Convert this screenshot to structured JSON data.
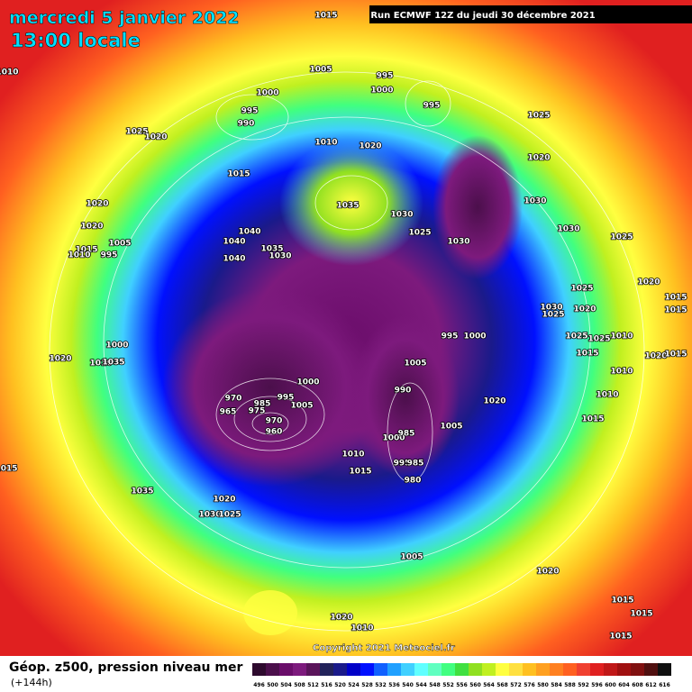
{
  "header": {
    "date": "mercredi 5 janvier 2022",
    "time": "13:00 locale",
    "run": "Run ECMWF 12Z du jeudi 30 décembre 2021"
  },
  "footer": {
    "title": "Géop. z500, pression niveau mer",
    "lead": "(+144h)",
    "copyright": "Copyright 2021 Meteociel.fr"
  },
  "legend": {
    "values": [
      496,
      500,
      504,
      508,
      512,
      516,
      520,
      524,
      528,
      532,
      536,
      540,
      544,
      548,
      552,
      556,
      560,
      564,
      568,
      572,
      576,
      580,
      584,
      588,
      592,
      596,
      600,
      604,
      608,
      612,
      616
    ],
    "colors": [
      "#2e0a2e",
      "#4b0f4b",
      "#6a0d6a",
      "#7d1a7d",
      "#5a145a",
      "#22225a",
      "#1a1a8a",
      "#0000c8",
      "#0010ff",
      "#1060ff",
      "#20a0ff",
      "#40d0ff",
      "#60ffff",
      "#60ffc0",
      "#40ff80",
      "#40e040",
      "#90e020",
      "#c0f020",
      "#ffff40",
      "#ffe040",
      "#ffc020",
      "#ffa020",
      "#ff8020",
      "#ff6020",
      "#f04030",
      "#e02020",
      "#c01818",
      "#a01010",
      "#801010",
      "#501010",
      "#101010"
    ]
  },
  "isobars": [
    "1015",
    "1010",
    "1005",
    "995",
    "1000",
    "1000",
    "995",
    "990",
    "995",
    "1025",
    "1020",
    "1010",
    "1020",
    "1025",
    "1020",
    "1015",
    "1035",
    "1030",
    "1030",
    "1020",
    "1020",
    "1025",
    "1030",
    "1025",
    "1040",
    "1040",
    "1035",
    "1030",
    "1005",
    "1015",
    "1010",
    "1040",
    "995",
    "1030",
    "1025",
    "1020",
    "1015",
    "1030",
    "1025",
    "1020",
    "1015",
    "1000",
    "995",
    "1000",
    "1025",
    "1025",
    "1010",
    "1015",
    "1020",
    "1015",
    "1020",
    "1010",
    "1035",
    "1005",
    "1000",
    "1010",
    "990",
    "970",
    "965",
    "985",
    "975",
    "995",
    "1005",
    "1020",
    "1010",
    "1015",
    "1005",
    "960",
    "970",
    "1000",
    "985",
    "1010",
    "995",
    "985",
    "1015",
    "980",
    "1015",
    "1035",
    "1020",
    "1030",
    "1025",
    "1005",
    "1020",
    "1015",
    "1020",
    "1015",
    "1010",
    "1015"
  ]
}
